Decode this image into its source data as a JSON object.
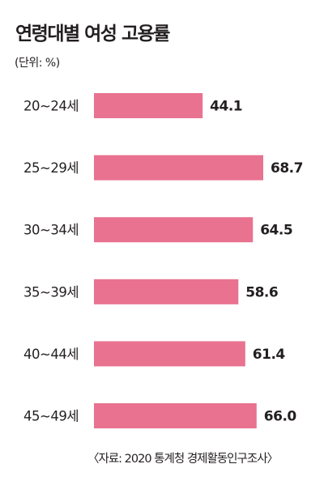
{
  "chart_data": {
    "type": "bar",
    "orientation": "horizontal",
    "title": "연령대별 여성 고용률",
    "unit_note": "(단위: %)",
    "categories": [
      "20~24세",
      "25~29세",
      "30~34세",
      "35~39세",
      "40~44세",
      "45~49세"
    ],
    "values": [
      44.1,
      68.7,
      64.5,
      58.6,
      61.4,
      66.0
    ],
    "value_labels": [
      "44.1",
      "68.7",
      "64.5",
      "58.6",
      "61.4",
      "66.0"
    ],
    "xlim": [
      0,
      68.7
    ],
    "grid": false,
    "legend": "none",
    "bar_color": "#e8728f",
    "source": "〈자료: 2020 통계청 경제활동인구조사〉"
  }
}
